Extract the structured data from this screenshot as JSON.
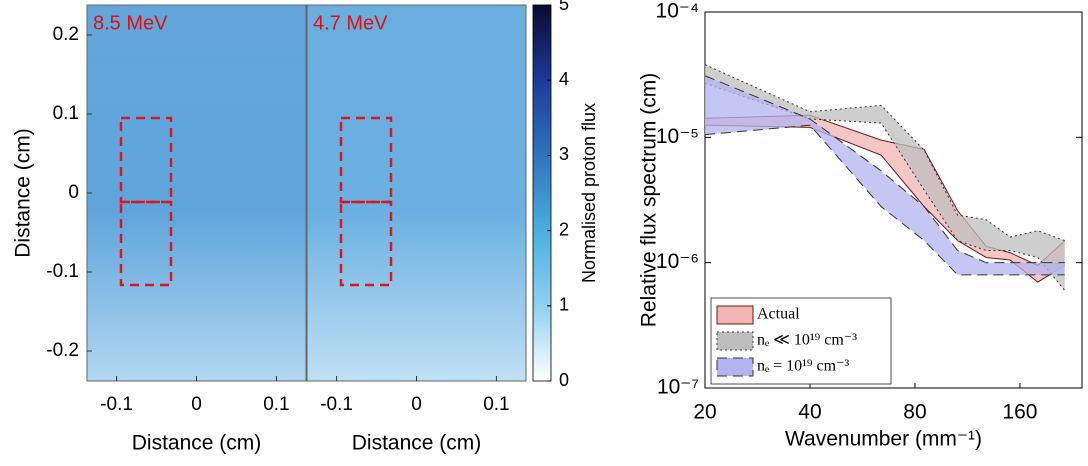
{
  "chart_data": [
    {
      "type": "image",
      "title": "8.5 MeV",
      "xlabel": "Distance (cm)",
      "ylabel": "Distance (cm)",
      "xlim": [
        -0.137,
        0.137
      ],
      "xticks": [
        -0.1,
        0,
        0.1
      ],
      "ylim": [
        -0.238,
        0.238
      ],
      "yticks": [
        -0.2,
        -0.1,
        0,
        0.1,
        0.2
      ]
    },
    {
      "type": "image",
      "title": "4.7 MeV",
      "xlabel": "Distance (cm)",
      "xlim": [
        -0.137,
        0.137
      ],
      "xticks": [
        -0.1,
        0,
        0.1
      ],
      "colorbar": {
        "label": "Normalised proton flux",
        "lim": [
          0,
          5
        ],
        "ticks": [
          0,
          1,
          2,
          3,
          4,
          5
        ]
      }
    },
    {
      "type": "band",
      "xlabel": "Wavenumber (mm⁻¹)",
      "ylabel": "Relative flux spectrum (cm)",
      "xscale": "log",
      "yscale": "log",
      "xlim": [
        20,
        241
      ],
      "xticks": [
        20,
        40,
        80,
        160
      ],
      "ylim": [
        1e-07,
        0.0001
      ],
      "yticks": [
        {
          "value": 1e-07,
          "label": "10⁻⁷"
        },
        {
          "value": 1e-06,
          "label": "10⁻⁶"
        },
        {
          "value": 1e-05,
          "label": "10⁻⁵"
        },
        {
          "value": 0.0001,
          "label": "10⁻⁴"
        }
      ],
      "legend": "lower left",
      "x": [
        20,
        40,
        64,
        85,
        106,
        128,
        150,
        180,
        215
      ],
      "series": [
        {
          "name": "Actual",
          "color": "#f2b3b3",
          "edge_color": "#6b1a1a",
          "edge_style": "solid",
          "upper": [
            1.42e-05,
            1.5e-05,
            9.5e-06,
            8e-06,
            2.6e-06,
            1.35e-06,
            1.2e-06,
            9.5e-07,
            1.5e-06
          ],
          "lower": [
            1.25e-05,
            1.2e-05,
            7.2e-06,
            2.8e-06,
            1.5e-06,
            1.1e-06,
            1.05e-06,
            7e-07,
            9.5e-07
          ]
        },
        {
          "name": "nₑ ≪ 10¹⁹ cm⁻³",
          "color": "#bdbdbd",
          "edge_color": "#333333",
          "edge_style": "dotted",
          "upper": [
            3.8e-05,
            1.6e-05,
            1.8e-05,
            7.9e-06,
            2.4e-06,
            2.2e-06,
            1.6e-06,
            1.8e-06,
            1.5e-06
          ],
          "lower": [
            2.7e-05,
            1.4e-05,
            1.3e-05,
            3.8e-06,
            1.5e-06,
            1.25e-06,
            1.25e-06,
            1.1e-06,
            6e-07
          ]
        },
        {
          "name": "nₑ = 10¹⁹ cm⁻³",
          "color": "#b3b3f0",
          "edge_color": "#333333",
          "edge_style": "dashed",
          "upper": [
            3.1e-05,
            1.4e-05,
            5.4e-06,
            2.8e-06,
            1.25e-06,
            1e-06,
            1e-06,
            1e-06,
            1e-06
          ],
          "lower": [
            1.05e-05,
            1.25e-05,
            2.8e-06,
            1.5e-06,
            8e-07,
            8e-07,
            8e-07,
            8e-07,
            8e-07
          ]
        }
      ]
    }
  ]
}
